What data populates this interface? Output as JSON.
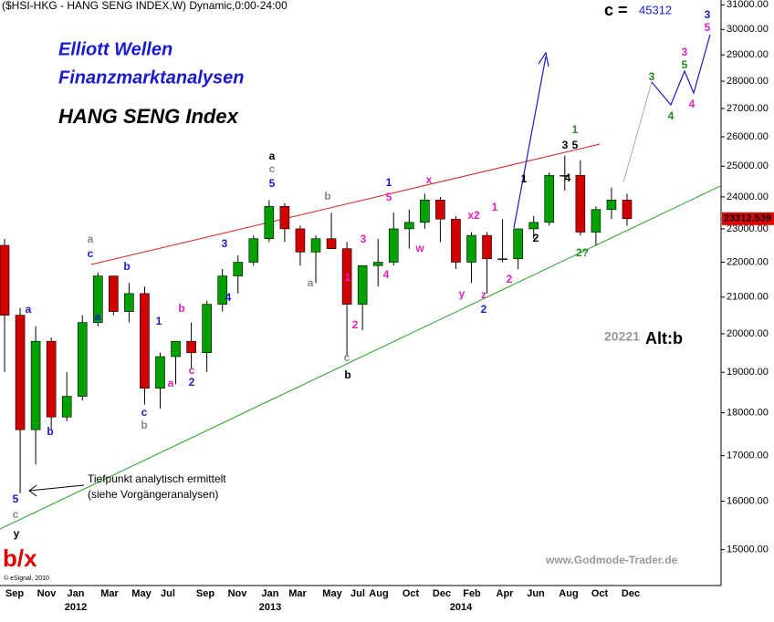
{
  "chart_data": {
    "type": "candlestick",
    "title": "($HSI-HKG - HANG SENG INDEX,W) Dynamic,0:00-24:00",
    "headings": [
      "Elliott Wellen",
      "Finanzmarktanalysen",
      "HANG SENG Index"
    ],
    "target_label": "c =",
    "target_value": "45312",
    "alt_value": "20221",
    "alt_label": "Alt:b",
    "big_label": "b/x",
    "low_note": [
      "Tiefpunkt analytisch ermittelt",
      "(siehe Vorgängeranalysen)"
    ],
    "source": "www.Godmode-Trader.de",
    "copyright": "© eSignal, 2010",
    "x_labels": [
      "Sep",
      "Nov",
      "Jan",
      "Mar",
      "May",
      "Jul",
      "Sep",
      "Nov",
      "Jan",
      "Mar",
      "May",
      "Jul",
      "Aug",
      "Oct",
      "Dec",
      "Feb",
      "Apr",
      "Jun",
      "Aug",
      "Oct",
      "Dec"
    ],
    "year_labels": [
      "2012",
      "2013",
      "2014"
    ],
    "log_scale": true,
    "ylim": [
      14300,
      31200
    ],
    "yticks": [
      {
        "value": 31000,
        "label": "31000.00"
      },
      {
        "value": 30000,
        "label": "30000.00"
      },
      {
        "value": 29000,
        "label": "29000.00"
      },
      {
        "value": 28000,
        "label": "28000.00"
      },
      {
        "value": 27000,
        "label": "27000.00"
      },
      {
        "value": 26000,
        "label": "26000.00"
      },
      {
        "value": 25000,
        "label": "25000.00"
      },
      {
        "value": 24000,
        "label": "24000.00"
      },
      {
        "value": 23000,
        "label": "23000.00"
      },
      {
        "value": 22000,
        "label": "22000.00"
      },
      {
        "value": 21000,
        "label": "21000.00"
      },
      {
        "value": 20000,
        "label": "20000.00"
      },
      {
        "value": 19000,
        "label": "19000.00"
      },
      {
        "value": 18000,
        "label": "18000.00"
      },
      {
        "value": 17000,
        "label": "17000.00"
      },
      {
        "value": 16000,
        "label": "16000.00"
      },
      {
        "value": 15000,
        "label": "15000.00"
      }
    ],
    "up_color": "#00a000",
    "down_color": "#d00000",
    "last_price_color": "#e00000",
    "open": [
      22500,
      20500,
      17600,
      19800,
      17900,
      18400,
      20300,
      21600,
      20600,
      21100,
      18600,
      19400,
      19800,
      19500,
      20800,
      21600,
      22000,
      22700,
      23700,
      23000,
      22300,
      22700,
      22400,
      20800,
      21900,
      22000,
      23000,
      23200,
      23900,
      23300,
      22000,
      22800,
      22100,
      22100,
      23000,
      23200,
      24700,
      24700,
      22900,
      23600,
      23900
    ],
    "high": [
      22700,
      20700,
      20200,
      19900,
      19000,
      20500,
      21700,
      21600,
      21400,
      21300,
      19500,
      19800,
      20300,
      20900,
      21800,
      22200,
      22800,
      23900,
      23800,
      23100,
      22800,
      23500,
      22600,
      21900,
      22700,
      23500,
      23600,
      24100,
      24000,
      23400,
      22900,
      22900,
      23300,
      22900,
      23400,
      24800,
      25360,
      25200,
      23700,
      24300,
      24100
    ],
    "low": [
      19000,
      16170,
      16800,
      17600,
      17800,
      18300,
      20200,
      20500,
      20300,
      18200,
      18100,
      18700,
      19100,
      19000,
      20600,
      21100,
      21900,
      22600,
      22600,
      21900,
      21400,
      22500,
      19400,
      20100,
      21300,
      21900,
      22400,
      23000,
      22600,
      21800,
      21400,
      21100,
      22000,
      21800,
      22700,
      23100,
      24200,
      22800,
      22500,
      23300,
      23100
    ],
    "close": [
      20500,
      17600,
      19800,
      17900,
      18400,
      20300,
      21600,
      20600,
      21100,
      18600,
      19400,
      19800,
      19500,
      20800,
      21600,
      22000,
      22700,
      23700,
      23000,
      22300,
      22700,
      22400,
      20800,
      21900,
      22000,
      23000,
      23200,
      23900,
      23300,
      22000,
      22800,
      22100,
      22100,
      23000,
      23200,
      24700,
      24700,
      22900,
      23600,
      23900,
      23312.539
    ],
    "annotations": [
      {
        "text": "a",
        "color": "#888888"
      },
      {
        "text": "c",
        "color": "#1a1acc"
      },
      {
        "text": "b",
        "color": "#1a1acc"
      },
      {
        "text": "a",
        "color": "#1a1acc"
      },
      {
        "text": "a",
        "color": "#1a1acc"
      },
      {
        "text": "b",
        "color": "#1a1acc"
      },
      {
        "text": "5",
        "color": "#1a1acc"
      },
      {
        "text": "c",
        "color": "#888888"
      },
      {
        "text": "y",
        "color": "#000000"
      },
      {
        "text": "1",
        "color": "#1a1acc"
      },
      {
        "text": "b",
        "color": "#e020c0"
      },
      {
        "text": "3",
        "color": "#1a1acc"
      },
      {
        "text": "4",
        "color": "#1a1acc"
      },
      {
        "text": "c",
        "color": "#888888"
      },
      {
        "text": "a",
        "color": "#000000"
      },
      {
        "text": "5",
        "color": "#1a1acc"
      },
      {
        "text": "b",
        "color": "#888888"
      },
      {
        "text": "a",
        "color": "#888888"
      },
      {
        "text": "1",
        "color": "#e020c0"
      },
      {
        "text": "2",
        "color": "#e020c0"
      },
      {
        "text": "3",
        "color": "#e020c0"
      },
      {
        "text": "4",
        "color": "#e020c0"
      },
      {
        "text": "1",
        "color": "#1a1acc"
      },
      {
        "text": "5",
        "color": "#e020c0"
      },
      {
        "text": "x",
        "color": "#e020c0"
      },
      {
        "text": "w",
        "color": "#e020c0"
      },
      {
        "text": "x2",
        "color": "#e020c0"
      },
      {
        "text": "1",
        "color": "#e020c0"
      },
      {
        "text": "y",
        "color": "#e020c0"
      },
      {
        "text": "z",
        "color": "#e020c0"
      },
      {
        "text": "2",
        "color": "#1a1acc"
      },
      {
        "text": "2",
        "color": "#e020c0"
      },
      {
        "text": "c",
        "color": "#888888"
      },
      {
        "text": "b",
        "color": "#000000"
      },
      {
        "text": "a",
        "color": "#e020c0"
      },
      {
        "text": "c",
        "color": "#e020c0"
      },
      {
        "text": "2",
        "color": "#1a1acc"
      },
      {
        "text": "c",
        "color": "#1a1acc"
      },
      {
        "text": "b",
        "color": "#888888"
      },
      {
        "text": "1",
        "color": "#000000"
      },
      {
        "text": "2",
        "color": "#000000"
      },
      {
        "text": "3",
        "color": "#000000"
      },
      {
        "text": "5",
        "color": "#000000"
      },
      {
        "text": "1",
        "color": "#228b22"
      },
      {
        "text": "4",
        "color": "#000000"
      },
      {
        "text": "2?",
        "color": "#228b22"
      },
      {
        "text": "3",
        "color": "#228b22"
      },
      {
        "text": "4",
        "color": "#228b22"
      },
      {
        "text": "5",
        "color": "#228b22"
      },
      {
        "text": "3",
        "color": "#e020c0"
      },
      {
        "text": "4",
        "color": "#e020c0"
      },
      {
        "text": "3",
        "color": "#1a1acc"
      },
      {
        "text": "5",
        "color": "#e020c0"
      }
    ]
  }
}
